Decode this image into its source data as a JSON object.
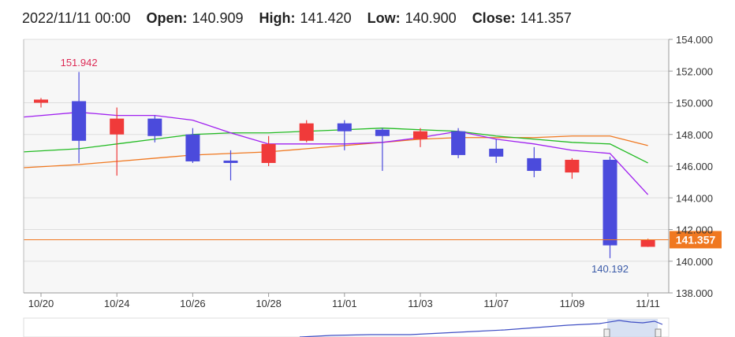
{
  "header": {
    "datetime": "2022/11/11 00:00",
    "open_label": "Open:",
    "open_value": "140.909",
    "high_label": "High:",
    "high_value": "141.420",
    "low_label": "Low:",
    "low_value": "140.900",
    "close_label": "Close:",
    "close_value": "141.357"
  },
  "chart_data": {
    "type": "candlestick",
    "y_ticks": [
      "154.000",
      "152.000",
      "150.000",
      "148.000",
      "146.000",
      "144.000",
      "142.000",
      "140.000",
      "138.000"
    ],
    "x_ticks": [
      "10/20",
      "10/24",
      "10/26",
      "10/28",
      "11/01",
      "11/03",
      "11/07",
      "11/09",
      "11/11"
    ],
    "ylim": [
      138,
      154
    ],
    "current_price_label": "141.357",
    "current_price": 141.357,
    "max_label": "151.942",
    "min_label": "140.192",
    "colors": {
      "up": "#f03a3a",
      "down": "#4b4bdc",
      "ma_short": "#a020f0",
      "ma_mid": "#22bb22",
      "ma_long": "#f07820",
      "price_line": "#f07820",
      "price_tag": "#f07820",
      "max_label": "#dd2a55",
      "min_label": "#3a5aa8"
    },
    "candles": [
      {
        "o": 150.0,
        "h": 150.3,
        "l": 149.7,
        "c": 150.2
      },
      {
        "o": 150.1,
        "h": 151.942,
        "l": 146.2,
        "c": 147.6
      },
      {
        "o": 148.0,
        "h": 149.7,
        "l": 145.4,
        "c": 149.0
      },
      {
        "o": 149.0,
        "h": 149.2,
        "l": 147.5,
        "c": 147.9
      },
      {
        "o": 148.0,
        "h": 148.4,
        "l": 146.2,
        "c": 146.3
      },
      {
        "o": 146.35,
        "h": 147.0,
        "l": 145.1,
        "c": 146.2
      },
      {
        "o": 146.2,
        "h": 147.9,
        "l": 146.0,
        "c": 147.4
      },
      {
        "o": 147.6,
        "h": 148.9,
        "l": 147.5,
        "c": 148.7
      },
      {
        "o": 148.7,
        "h": 148.9,
        "l": 147.0,
        "c": 148.2
      },
      {
        "o": 148.3,
        "h": 148.4,
        "l": 145.7,
        "c": 147.9
      },
      {
        "o": 147.7,
        "h": 148.4,
        "l": 147.2,
        "c": 148.2
      },
      {
        "o": 148.2,
        "h": 148.4,
        "l": 146.5,
        "c": 146.7
      },
      {
        "o": 147.1,
        "h": 147.7,
        "l": 146.2,
        "c": 146.6
      },
      {
        "o": 146.5,
        "h": 147.2,
        "l": 145.3,
        "c": 145.7
      },
      {
        "o": 145.6,
        "h": 146.5,
        "l": 145.2,
        "c": 146.4
      },
      {
        "o": 146.4,
        "h": 146.6,
        "l": 140.192,
        "c": 141.0
      },
      {
        "o": 140.909,
        "h": 141.42,
        "l": 140.9,
        "c": 141.357
      }
    ],
    "ma_short": [
      149.1,
      149.4,
      149.2,
      149.2,
      148.9,
      148.1,
      147.4,
      147.4,
      147.4,
      147.5,
      147.8,
      148.2,
      147.7,
      147.4,
      147.0,
      146.8,
      144.2
    ],
    "ma_mid": [
      146.9,
      147.1,
      147.4,
      147.7,
      148.0,
      148.1,
      148.1,
      148.2,
      148.3,
      148.4,
      148.3,
      148.2,
      147.9,
      147.7,
      147.5,
      147.4,
      146.2
    ],
    "ma_long": [
      145.9,
      146.1,
      146.3,
      146.5,
      146.7,
      146.8,
      146.9,
      147.1,
      147.3,
      147.5,
      147.7,
      147.8,
      147.8,
      147.8,
      147.9,
      147.9,
      147.3
    ]
  }
}
